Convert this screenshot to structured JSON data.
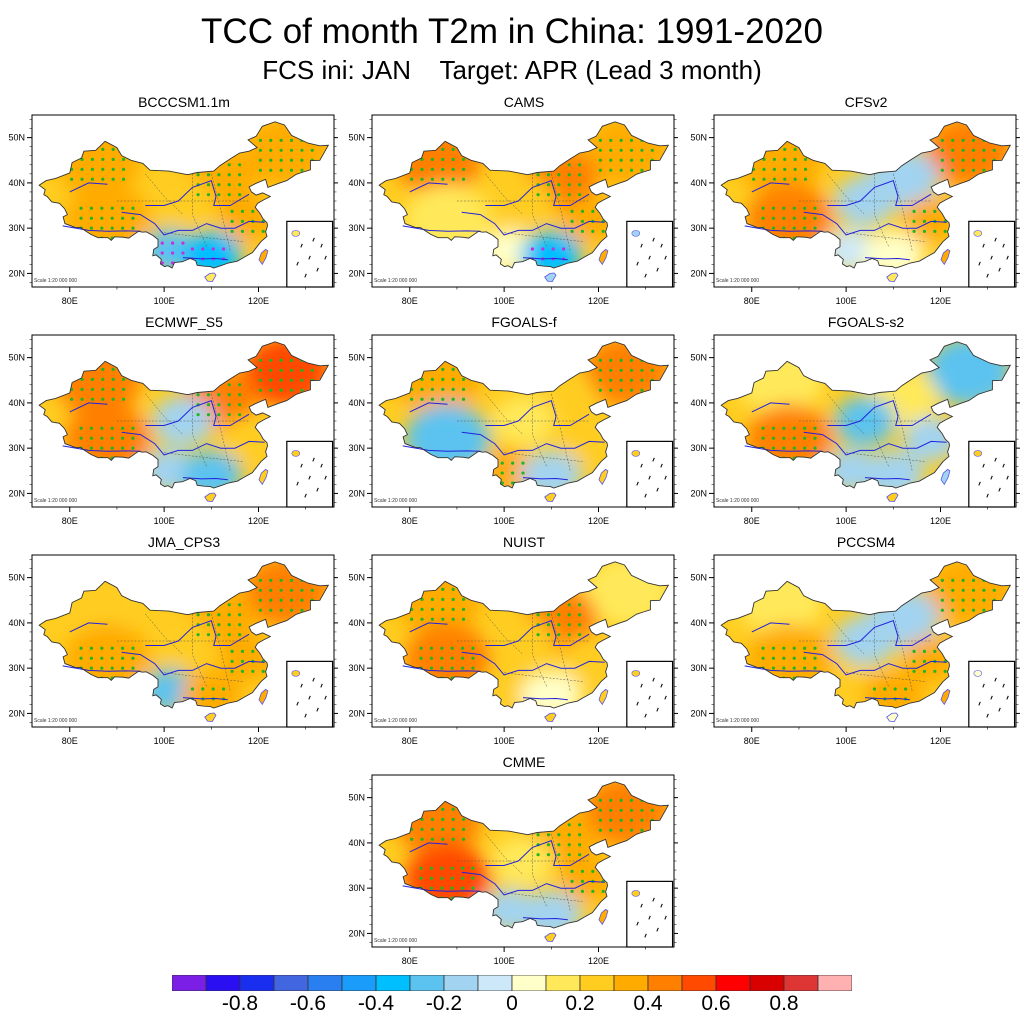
{
  "chart_data": {
    "type": "heatmap",
    "title": "TCC of month T2m in China: 1991-2020",
    "subtitle": "FCS ini: JAN    Target: APR (Lead 3 month)",
    "map_extent": {
      "lon": [
        72,
        136
      ],
      "lat": [
        17,
        55
      ]
    },
    "x_ticks": [
      "80E",
      "100E",
      "120E"
    ],
    "x_tick_values": [
      80,
      100,
      120
    ],
    "y_ticks": [
      "20N",
      "30N",
      "40N",
      "50N"
    ],
    "y_tick_values": [
      20,
      30,
      40,
      50
    ],
    "scale_text": "Scale 1:20 000 000",
    "significance_marker": "dot (green = significant positive, magenta = significant negative)",
    "panels": [
      {
        "name": "BCCCSM1.1m",
        "regions": {
          "NW": 0.35,
          "NE": 0.3,
          "N": 0.35,
          "TP": 0.3,
          "SW": -0.3,
          "S": -0.4,
          "E": 0.3,
          "C": 0.2,
          "HN": 0.15
        }
      },
      {
        "name": "CAMS",
        "regions": {
          "NW": 0.4,
          "NE": 0.35,
          "N": 0.45,
          "TP": 0.15,
          "SW": 0.05,
          "S": -0.35,
          "E": 0.35,
          "C": 0.2,
          "HN": -0.2
        }
      },
      {
        "name": "CFSv2",
        "regions": {
          "NW": 0.35,
          "NE": 0.45,
          "N": -0.15,
          "TP": 0.4,
          "SW": -0.1,
          "S": 0.05,
          "E": 0.3,
          "C": -0.2,
          "HN": 0.15
        }
      },
      {
        "name": "ECMWF_S5",
        "regions": {
          "NW": 0.45,
          "NE": 0.55,
          "N": 0.4,
          "TP": 0.4,
          "SW": -0.2,
          "S": -0.25,
          "E": 0.2,
          "C": -0.2,
          "HN": 0.2
        }
      },
      {
        "name": "FGOALS-f",
        "regions": {
          "NW": 0.35,
          "NE": 0.45,
          "N": 0.25,
          "TP": -0.25,
          "SW": 0.3,
          "S": -0.15,
          "E": 0.25,
          "C": 0.15,
          "HN": 0.2
        }
      },
      {
        "name": "FGOALS-s2",
        "regions": {
          "NW": 0.1,
          "NE": -0.25,
          "N": 0.15,
          "TP": 0.4,
          "SW": -0.2,
          "S": -0.2,
          "E": -0.2,
          "C": -0.25,
          "HN": 0.2
        }
      },
      {
        "name": "JMA_CPS3",
        "regions": {
          "NW": 0.25,
          "NE": 0.4,
          "N": 0.3,
          "TP": 0.3,
          "SW": -0.25,
          "S": 0.3,
          "E": 0.35,
          "C": 0.2,
          "HN": 0.25
        }
      },
      {
        "name": "NUIST",
        "regions": {
          "NW": 0.35,
          "NE": 0.15,
          "N": 0.4,
          "TP": 0.4,
          "SW": 0.2,
          "S": 0.05,
          "E": 0.25,
          "C": 0.2,
          "HN": 0.25
        }
      },
      {
        "name": "PCCSM4",
        "regions": {
          "NW": 0.15,
          "NE": 0.3,
          "N": -0.2,
          "TP": 0.3,
          "SW": 0.25,
          "S": 0.3,
          "E": 0.3,
          "C": -0.2,
          "HN": 0.05
        }
      },
      {
        "name": "CMME",
        "regions": {
          "NW": 0.45,
          "NE": 0.45,
          "N": 0.35,
          "TP": 0.5,
          "SW": -0.15,
          "S": -0.2,
          "E": 0.3,
          "C": 0.1,
          "HN": 0.2
        }
      }
    ],
    "colorbar": {
      "levels": [
        -0.9,
        -0.8,
        -0.7,
        -0.6,
        -0.5,
        -0.4,
        -0.3,
        -0.2,
        -0.1,
        0,
        0.1,
        0.2,
        0.3,
        0.4,
        0.5,
        0.6,
        0.7,
        0.8,
        0.9
      ],
      "colors": [
        "#7b1fe6",
        "#2a0ff2",
        "#1a2ef0",
        "#4266e0",
        "#2a7ff0",
        "#1a9cfa",
        "#00bfff",
        "#5cc3f0",
        "#a2d3f0",
        "#cde8f8",
        "#ffffc9",
        "#ffe95a",
        "#ffcd20",
        "#ffab00",
        "#ff8000",
        "#ff4a00",
        "#ff0000",
        "#d90000",
        "#de3535",
        "#ffb0b0"
      ],
      "tick_labels": [
        "-0.8",
        "-0.6",
        "-0.4",
        "-0.2",
        "0",
        "0.2",
        "0.4",
        "0.6",
        "0.8"
      ],
      "tick_values": [
        -0.8,
        -0.6,
        -0.4,
        -0.2,
        0,
        0.2,
        0.4,
        0.6,
        0.8
      ]
    }
  }
}
